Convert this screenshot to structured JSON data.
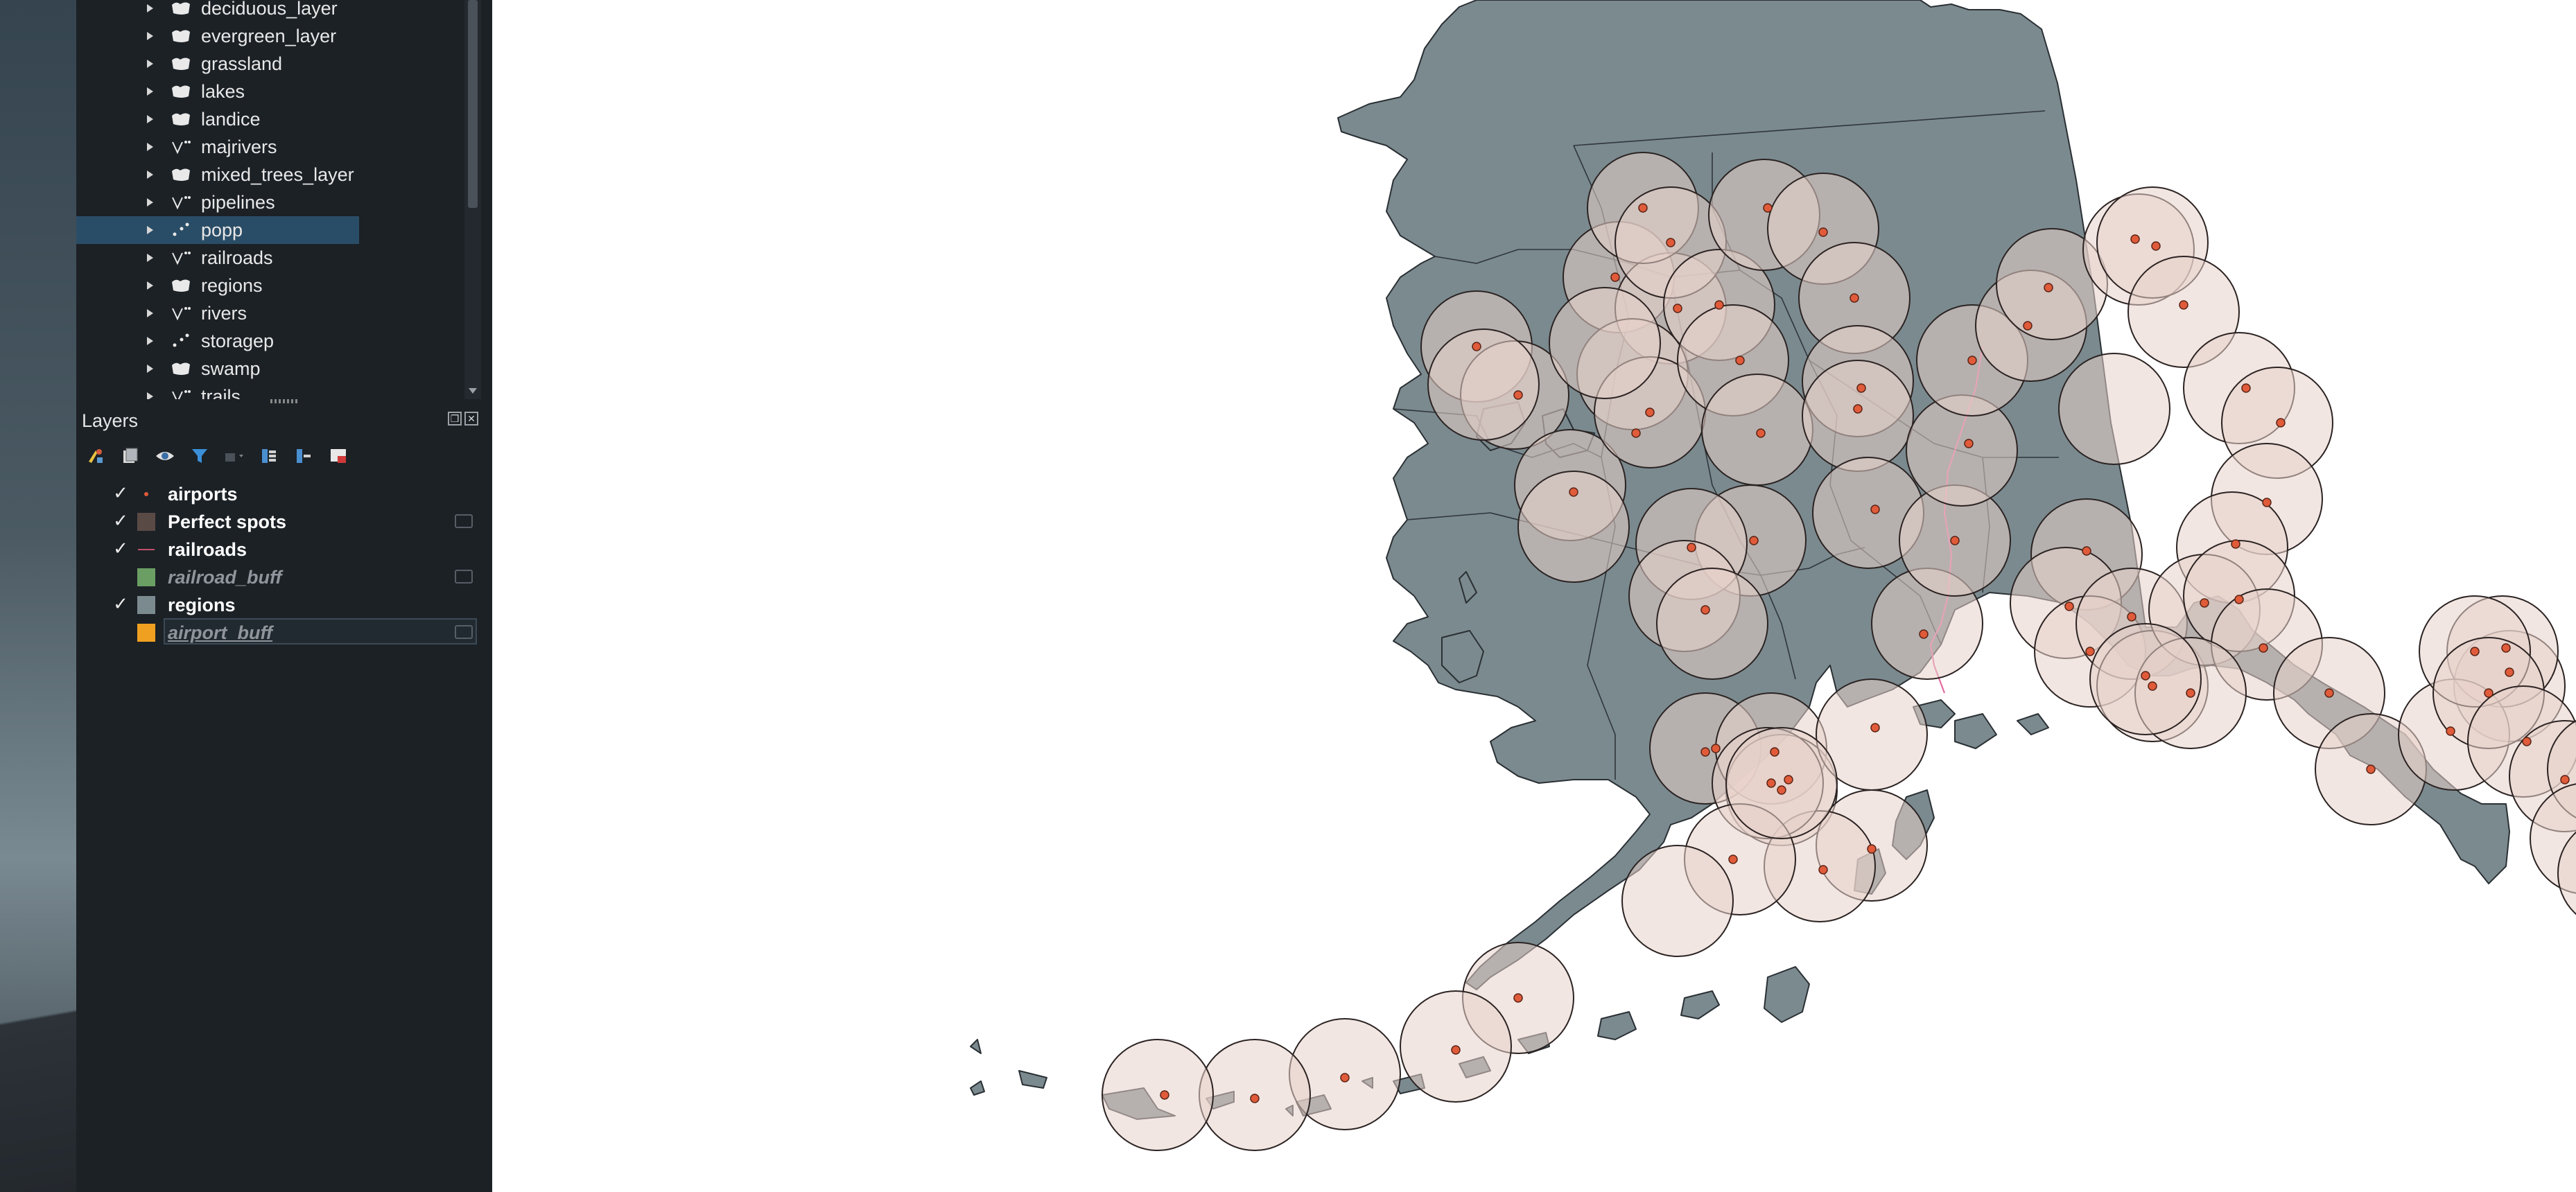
{
  "browser": {
    "items": [
      {
        "label": "deciduous_layer",
        "icon": "polygon-layer-icon"
      },
      {
        "label": "evergreen_layer",
        "icon": "polygon-layer-icon"
      },
      {
        "label": "grassland",
        "icon": "polygon-layer-icon"
      },
      {
        "label": "lakes",
        "icon": "polygon-layer-icon"
      },
      {
        "label": "landice",
        "icon": "polygon-layer-icon"
      },
      {
        "label": "majrivers",
        "icon": "line-layer-icon"
      },
      {
        "label": "mixed_trees_layer",
        "icon": "polygon-layer-icon"
      },
      {
        "label": "pipelines",
        "icon": "line-layer-icon"
      },
      {
        "label": "popp",
        "icon": "point-layer-icon",
        "selected": true
      },
      {
        "label": "railroads",
        "icon": "line-layer-icon"
      },
      {
        "label": "regions",
        "icon": "polygon-layer-icon"
      },
      {
        "label": "rivers",
        "icon": "line-layer-icon"
      },
      {
        "label": "storagep",
        "icon": "point-layer-icon"
      },
      {
        "label": "swamp",
        "icon": "polygon-layer-icon"
      },
      {
        "label": "trails",
        "icon": "line-layer-icon"
      }
    ]
  },
  "layers_panel": {
    "title": "Layers",
    "toolbar_icons": [
      "style-manager-icon",
      "add-group-icon",
      "visibility-eye-icon",
      "filter-legend-icon",
      "filter-expression-icon",
      "expand-all-icon",
      "collapse-all-icon",
      "remove-layer-icon"
    ],
    "layers": [
      {
        "name": "airports",
        "checked": true,
        "symbol": "point",
        "color": "#e05b3a",
        "indicator": false
      },
      {
        "name": "Perfect spots",
        "checked": true,
        "symbol": "fill",
        "color": "#5a4a45",
        "indicator": true
      },
      {
        "name": "railroads",
        "checked": true,
        "symbol": "line",
        "color": "#c0506a",
        "indicator": false
      },
      {
        "name": "railroad_buff",
        "checked": false,
        "symbol": "fill",
        "color": "#6a9e62",
        "indicator": true
      },
      {
        "name": "regions",
        "checked": true,
        "symbol": "fill",
        "color": "#7b8a8f",
        "indicator": false
      },
      {
        "name": "airport_buff",
        "checked": false,
        "symbol": "fill",
        "color": "#f0a020",
        "indicator": true,
        "editing": true
      }
    ],
    "check_glyph": "✓"
  },
  "map": {
    "background": "#ffffff",
    "land_color": "#7b8a8f",
    "buffer_color": "#e8d2cb",
    "airport_color": "#e05b3a",
    "railroad_color": "#e46aa0"
  }
}
